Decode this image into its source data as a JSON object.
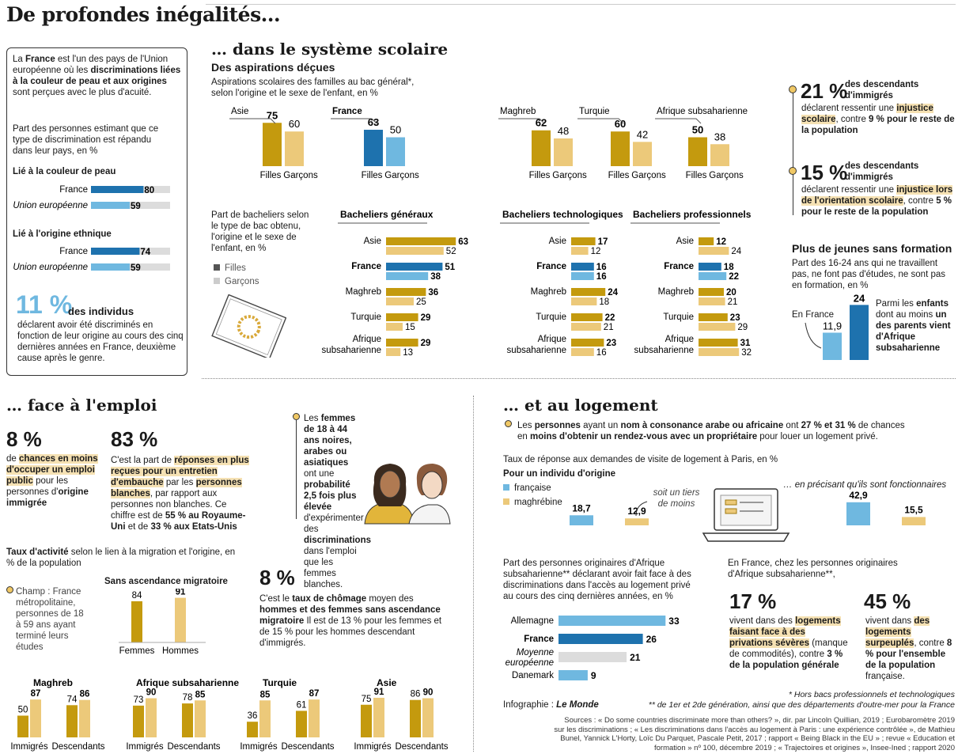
{
  "colors": {
    "gold": "#c49a0e",
    "lightgold": "#ecc97a",
    "blue": "#1e72ae",
    "lightblue": "#6fb8e0",
    "grey": "#dcdcdc"
  },
  "title": "De profondes inégalités…",
  "intro": {
    "t1": "La ",
    "t2": "France",
    "t3": " est l'un des pays de l'Union européenne où les ",
    "t4": "discriminations liées à la couleur de peau et aux origines",
    "t5": " sont perçues avec le plus d'acuité."
  },
  "perception": {
    "subtitle": "Part des personnes estimant que ce type de discrimination est répandu dans leur pays, en %",
    "g1": "Lié à la couleur de peau",
    "g2": "Lié à l'origine ethnique"
  },
  "eleven": {
    "pct": "11 %",
    "lead": "des individus",
    "text": "déclarent avoir été discriminés en fonction de leur origine au cours des cinq dernières années en France, deuxième cause après le genre."
  },
  "school": {
    "title": "… dans le système scolaire",
    "sub": "Des aspirations déçues",
    "desc": "Aspirations scolaires des familles au bac général*, selon l'origine et le sexe de l'enfant, en %",
    "bac_desc": "Part de bacheliers selon le type de bac obtenu, l'origine et le sexe de l'enfant, en %",
    "legend_f": "Filles",
    "legend_g": "Garçons",
    "h1": "Bacheliers généraux",
    "h2": "Bacheliers technologiques",
    "h3": "Bacheliers professionnels"
  },
  "stats_right": {
    "s1_pct": "21 %",
    "s1_lead": "des descendants d'immigrés",
    "s1_a": "déclarent ressentir une ",
    "s1_b": "injustice scolaire",
    "s1_c": ", contre ",
    "s1_d": "9 % pour le reste de la population",
    "s2_pct": "15 %",
    "s2_lead": "des descendants d'immigrés",
    "s2_a": "déclarent ressentir une ",
    "s2_b": "injustice lors de l'orientation scolaire",
    "s2_c": ", contre ",
    "s2_d": "5 % pour le reste de la population",
    "neet_title": "Plus de jeunes sans formation",
    "neet_desc": "Part des 16-24 ans qui ne travaillent pas, ne font pas d'études, ne sont pas en formation, en %",
    "neet_fr": "En France",
    "neet_a": "Parmi les ",
    "neet_b": "enfants",
    "neet_c": " dont au moins ",
    "neet_d": "un des parents vient d'Afrique subsaharienne"
  },
  "emploi": {
    "title": "… face à l'emploi",
    "p8": "8 %",
    "p8_a": "de ",
    "p8_b": "chances en moins d'occuper un emploi public",
    "p8_c": " pour les personnes d'",
    "p8_d": "origine immigrée",
    "p83": "83 %",
    "p83_a": "C'est la part de ",
    "p83_b": "réponses en plus reçues pour un entretien d'embauche",
    "p83_c": " par les ",
    "p83_d": "personnes blanches",
    "p83_e": ", par rapport aux personnes non blanches. Ce chiffre est de ",
    "p83_f": "55 % au Royaume-Uni",
    "p83_g": " et de ",
    "p83_h": "33 % aux Etats-Unis",
    ".": ".",
    "women_a": "Les ",
    "women_b": "femmes de 18 à 44 ans noires, arabes ou asiatiques",
    "women_c": " ont une ",
    "women_d": "probabilité 2,5 fois plus élevée",
    "women_e": " d'expérimenter des ",
    "women_f": "discriminations",
    "women_g": " dans l'emploi que les femmes blanches.",
    "taux_a": "Taux d'activité",
    "taux_b": " selon le lien à la migration et l'origine, en % de la population",
    "champ": "Champ : France métropolitaine, personnes de 18 à 59 ans ayant terminé leurs études",
    "sans": "Sans ascendance migratoire",
    "u8": "8 %",
    "u8_a": "C'est le ",
    "u8_b": "taux de chômage",
    "u8_c": " moyen des ",
    "u8_d": "hommes et des femmes sans ascendance migratoire",
    "u8_e": " Il est de 13 % pour les femmes et de 15 % pour les hommes descendant d'immigrés."
  },
  "logement": {
    "title": "… et au logement",
    "a": "Les ",
    "b": "personnes",
    "c": " ayant un ",
    "d": "nom à consonance arabe ou africaine",
    "e": " ont ",
    "f": "27 % et 31 %",
    "g": " de chances en ",
    "h": "moins d'obtenir un rendez-vous avec un propriétaire",
    "i": " pour louer un logement privé.",
    "taux": "Taux de réponse aux demandes de visite de logement à Paris, en %",
    "sub": "Pour un individu d'origine",
    "leg1": "française",
    "leg2": "maghrébine",
    "tiers": "soit un tiers de moins",
    "fonct": "… en précisant qu'ils sont fonctionnaires",
    "afr_desc": "Part des personnes originaires d'Afrique subsaharienne** déclarant avoir fait face à des discriminations dans l'accès au logement privé au cours des cinq dernières années, en %",
    "fr_desc": "En France, chez les personnes originaires d'Afrique subsaharienne**,",
    "p17": "17 %",
    "p17_a": "vivent dans des ",
    "p17_b": "logements faisant face à des privations sévères",
    "p17_c": " (manque de commodités), contre ",
    "p17_d": "3 % de la population générale",
    ".": ".",
    "p45": "45 %",
    "p45_a": "vivent dans ",
    "p45_b": "des logements surpeuplés",
    "p45_c": ", contre ",
    "p45_d": "8 % pour l'ensemble de la population",
    "p45_e": " française."
  },
  "footer": {
    "infog": "Infographie : ",
    "lemonde": "Le Monde",
    "n1": "* Hors bacs professionnels et technologiques",
    "n2": "** de 1er et 2de génération, ainsi que des départements d'outre-mer pour la France",
    "src": "Sources : « Do some countries discriminate more than others? », dir. par Lincoln Quillian, 2019 ; Eurobaromètre 2019 sur les discriminations ; « Les discriminations dans l'accès au logement à Paris : une expérience contrôlée », de Mathieu Bunel, Yannick L'Horty, Loïc Du Parquet, Pascale Petit, 2017 ; rapport « Being Black in the EU » ; revue « Education et formation » nº 100, décembre 2019 ; « Trajectoires et origines », Insee-Ined ; rapport 2020"
  },
  "chart_data": [
    {
      "id": "perception",
      "type": "bar",
      "orientation": "horizontal",
      "groups": [
        {
          "name": "Lié à la couleur de peau",
          "categories": [
            "France",
            "Union européenne"
          ],
          "values": [
            80,
            59
          ]
        },
        {
          "name": "Lié à l'origine ethnique",
          "categories": [
            "France",
            "Union européenne"
          ],
          "values": [
            74,
            59
          ]
        }
      ],
      "ylim": [
        0,
        100
      ]
    },
    {
      "id": "aspirations",
      "type": "bar",
      "categories": [
        "Asie",
        "France",
        "Maghreb",
        "Turquie",
        "Afrique subsaharienne"
      ],
      "series": [
        {
          "name": "Filles",
          "values": [
            75,
            63,
            62,
            60,
            50
          ]
        },
        {
          "name": "Garçons",
          "values": [
            60,
            50,
            48,
            42,
            38
          ]
        }
      ],
      "ylim": [
        0,
        100
      ]
    },
    {
      "id": "bac_generaux",
      "type": "bar",
      "orientation": "horizontal",
      "categories": [
        "Asie",
        "France",
        "Maghreb",
        "Turquie",
        "Afrique subsaharienne"
      ],
      "series": [
        {
          "name": "Filles",
          "values": [
            63,
            51,
            36,
            29,
            29
          ]
        },
        {
          "name": "Garçons",
          "values": [
            52,
            38,
            25,
            15,
            13
          ]
        }
      ]
    },
    {
      "id": "bac_techno",
      "type": "bar",
      "orientation": "horizontal",
      "categories": [
        "Asie",
        "France",
        "Maghreb",
        "Turquie",
        "Afrique subsaharienne"
      ],
      "series": [
        {
          "name": "Filles",
          "values": [
            17,
            16,
            24,
            22,
            23
          ]
        },
        {
          "name": "Garçons",
          "values": [
            12,
            16,
            18,
            21,
            16
          ]
        }
      ]
    },
    {
      "id": "bac_pro",
      "type": "bar",
      "orientation": "horizontal",
      "categories": [
        "Asie",
        "France",
        "Maghreb",
        "Turquie",
        "Afrique subsaharienne"
      ],
      "series": [
        {
          "name": "Filles",
          "values": [
            12,
            18,
            20,
            23,
            31
          ]
        },
        {
          "name": "Garçons",
          "values": [
            24,
            22,
            21,
            29,
            32
          ]
        }
      ]
    },
    {
      "id": "neet",
      "type": "bar",
      "categories": [
        "En France",
        "Parmi les enfants dont au moins un des parents vient d'Afrique subsaharienne"
      ],
      "values": [
        11.9,
        24
      ]
    },
    {
      "id": "activite_sans",
      "type": "bar",
      "categories": [
        "Femmes",
        "Hommes"
      ],
      "values": [
        84,
        91
      ]
    },
    {
      "id": "activite_origine",
      "type": "bar",
      "groups": [
        {
          "name": "Maghreb",
          "categories": [
            "Immigrés",
            "Descendants"
          ],
          "series": [
            {
              "name": "Femmes",
              "values": [
                50,
                74
              ]
            },
            {
              "name": "Hommes",
              "values": [
                87,
                86
              ]
            }
          ]
        },
        {
          "name": "Afrique subsaharienne",
          "categories": [
            "Immigrés",
            "Descendants"
          ],
          "series": [
            {
              "name": "Femmes",
              "values": [
                73,
                78
              ]
            },
            {
              "name": "Hommes",
              "values": [
                90,
                85
              ]
            }
          ]
        },
        {
          "name": "Turquie",
          "categories": [
            "Immigrés",
            "Descendants"
          ],
          "series": [
            {
              "name": "Femmes",
              "values": [
                36,
                61
              ]
            },
            {
              "name": "Hommes",
              "values": [
                85,
                87
              ]
            }
          ]
        },
        {
          "name": "Asie",
          "categories": [
            "Immigrés",
            "Descendants"
          ],
          "series": [
            {
              "name": "Femmes",
              "values": [
                75,
                86
              ]
            },
            {
              "name": "Hommes",
              "values": [
                91,
                90
              ]
            }
          ]
        }
      ]
    },
    {
      "id": "logement_paris",
      "type": "bar",
      "categories": [
        "Pour un individu d'origine",
        "… en précisant qu'ils sont fonctionnaires"
      ],
      "series": [
        {
          "name": "française",
          "values": [
            18.7,
            42.9
          ]
        },
        {
          "name": "maghrébine",
          "values": [
            12.9,
            15.5
          ]
        }
      ]
    },
    {
      "id": "logement_afrique",
      "type": "bar",
      "orientation": "horizontal",
      "categories": [
        "Allemagne",
        "France",
        "Moyenne européenne",
        "Danemark"
      ],
      "values": [
        33,
        26,
        21,
        9
      ]
    }
  ]
}
